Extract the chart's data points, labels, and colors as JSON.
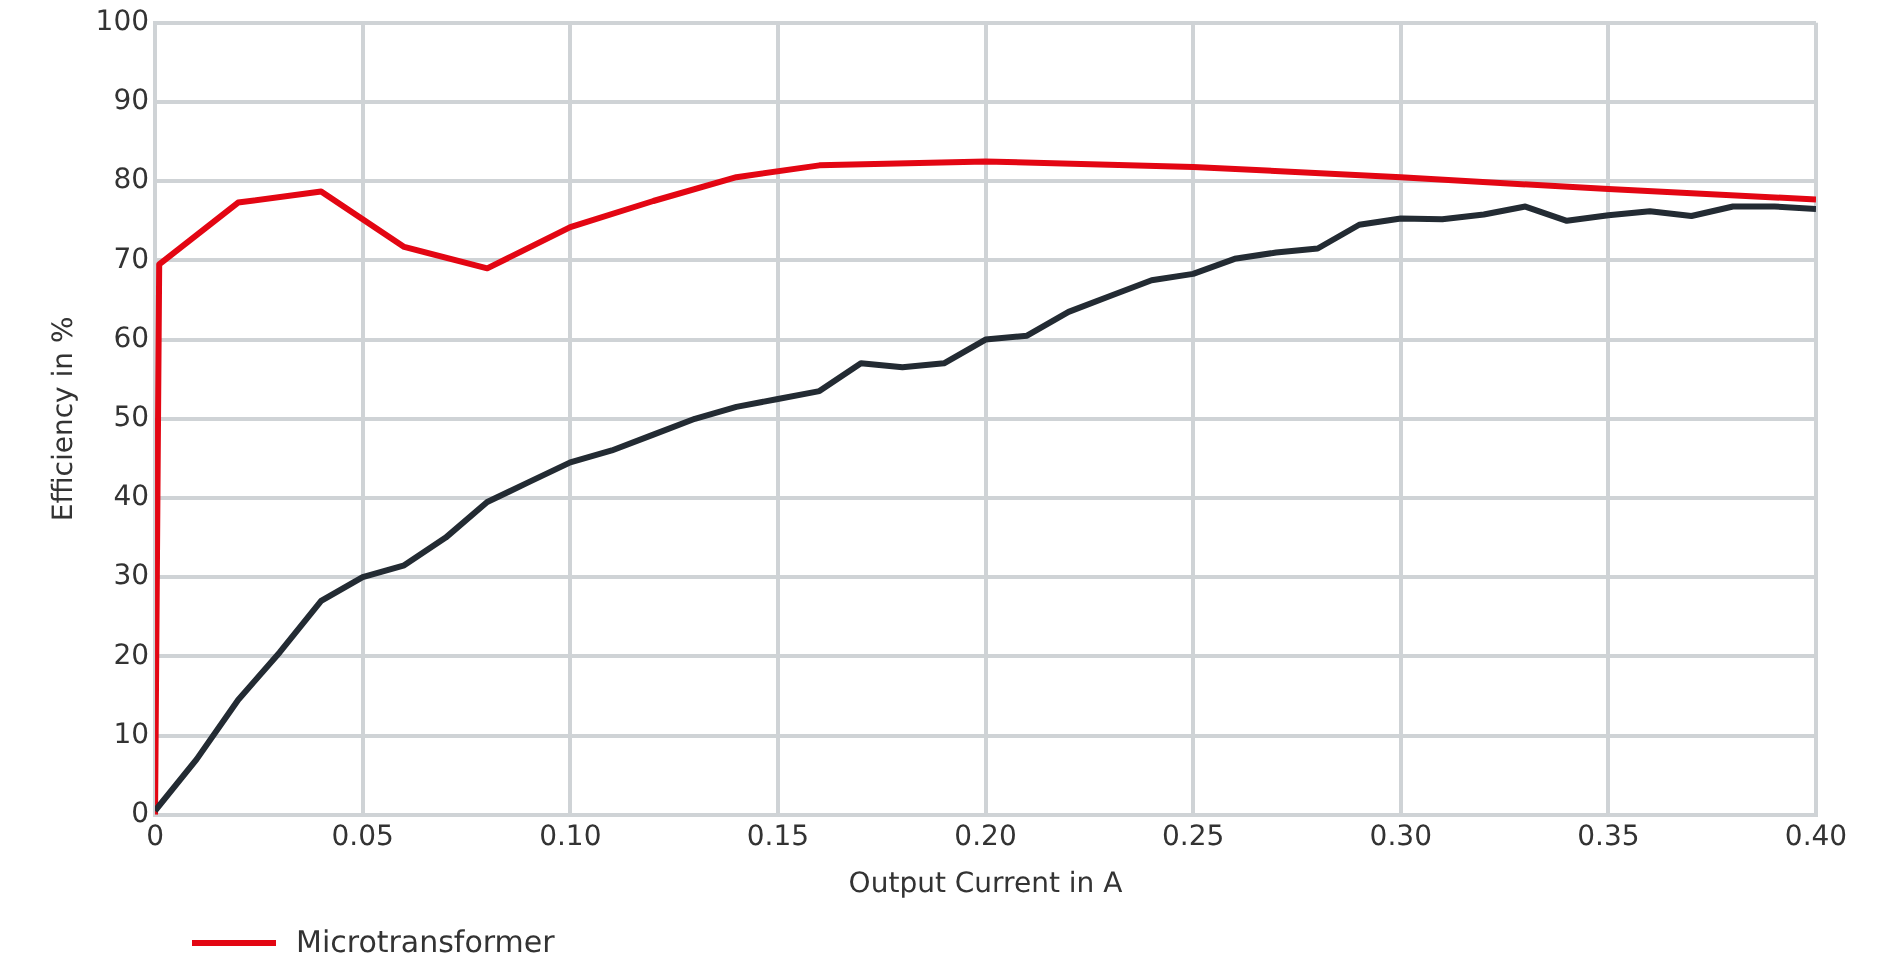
{
  "chart_data": {
    "type": "line",
    "xlabel": "Output Current in A",
    "ylabel": "Efficiency in %",
    "xlim": [
      0,
      0.4
    ],
    "xticks": [
      0,
      {
        "value": 0.05,
        "label": "0.05"
      },
      {
        "value": 0.1,
        "label": "0.10"
      },
      {
        "value": 0.15,
        "label": "0.15"
      },
      {
        "value": 0.2,
        "label": "0.20"
      },
      {
        "value": 0.25,
        "label": "0.25"
      },
      {
        "value": 0.3,
        "label": "0.30"
      },
      {
        "value": 0.35,
        "label": "0.35"
      },
      {
        "value": 0.4,
        "label": "0.40"
      }
    ],
    "ylim": [
      0,
      100
    ],
    "yticks": [
      0,
      10,
      20,
      30,
      40,
      50,
      60,
      70,
      80,
      90,
      100
    ],
    "grid": true,
    "legend": "bottom left",
    "marker": "none",
    "line_style": "solid",
    "series": [
      {
        "color": "#232b33",
        "x": [
          0,
          0.01,
          0.02,
          0.03,
          0.04,
          0.05,
          0.06,
          0.07,
          0.08,
          0.09,
          0.1,
          0.11,
          0.12,
          0.13,
          0.14,
          0.15,
          0.16,
          0.17,
          0.18,
          0.19,
          0.2,
          0.21,
          0.22,
          0.23,
          0.24,
          0.25,
          0.26,
          0.27,
          0.28,
          0.29,
          0.3,
          0.31,
          0.32,
          0.33,
          0.34,
          0.35,
          0.36,
          0.37,
          0.38,
          0.39,
          0.4
        ],
        "values": [
          0.5,
          7,
          14.5,
          20.5,
          27,
          30,
          31.5,
          35,
          39.5,
          42,
          44.5,
          46,
          48,
          50,
          51.5,
          52.5,
          53.5,
          57,
          56.5,
          57,
          60,
          60.5,
          63.5,
          65.5,
          67.5,
          68.3,
          70.2,
          71,
          71.5,
          74.5,
          75.3,
          75.2,
          75.8,
          76.8,
          75,
          75.7,
          76.2,
          75.6,
          76.8,
          76.8,
          76.5
        ]
      },
      {
        "name": "Microtransformer",
        "color": "#e30613",
        "x": [
          0,
          0.001,
          0.02,
          0.04,
          0.06,
          0.08,
          0.1,
          0.12,
          0.14,
          0.16,
          0.2,
          0.25,
          0.3,
          0.35,
          0.4
        ],
        "values": [
          0,
          69.5,
          77.3,
          78.7,
          71.7,
          69,
          74.2,
          77.5,
          80.5,
          82,
          82.5,
          81.8,
          80.5,
          79,
          77.7
        ]
      }
    ]
  }
}
